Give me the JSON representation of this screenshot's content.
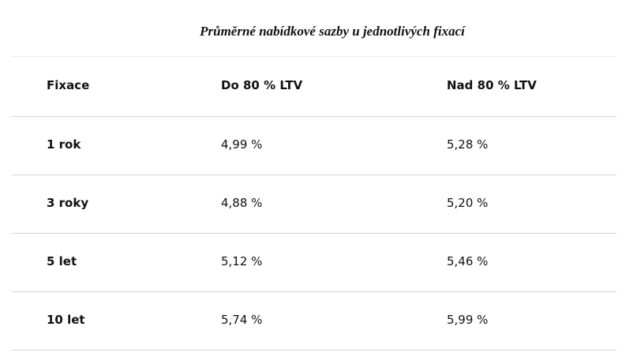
{
  "title": "Průměrné nabídkové sazby u jednotlivých fixací",
  "table": {
    "header": [
      "Fixace",
      "Do 80 % LTV",
      "Nad 80 % LTV"
    ],
    "rows": [
      [
        "1 rok",
        "4,99 %",
        "5,28 %"
      ],
      [
        "3 roky",
        "4,88 %",
        "5,20 %"
      ],
      [
        "5 let",
        "5,12 %",
        "5,46 %"
      ],
      [
        "10 let",
        "5,74 %",
        "5,99 %"
      ]
    ]
  }
}
